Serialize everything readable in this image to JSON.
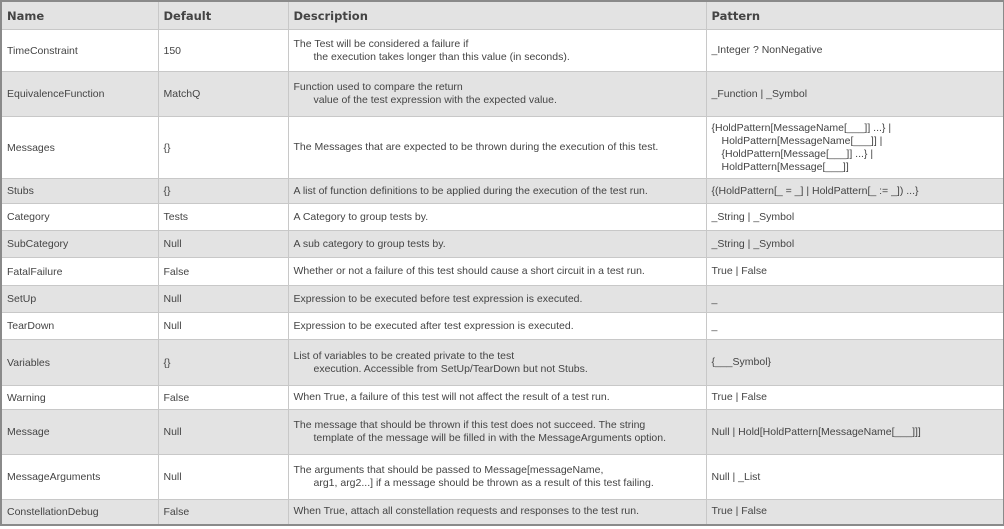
{
  "headers": [
    "Name",
    "Default",
    "Description",
    "Pattern"
  ],
  "rows": [
    {
      "name": "TimeConstraint",
      "default": "150",
      "description": [
        "The Test will be considered a failure if",
        "the execution takes longer than this value (in seconds)."
      ],
      "pattern": [
        "_Integer ? NonNegative"
      ]
    },
    {
      "name": "EquivalenceFunction",
      "default": "MatchQ",
      "description": [
        "Function used to compare the return",
        "value of the test expression with the expected value."
      ],
      "pattern": [
        "_Function | _Symbol"
      ]
    },
    {
      "name": "Messages",
      "default": "{}",
      "description": [
        "The Messages that are expected to be thrown during the execution of this test."
      ],
      "pattern": [
        "{HoldPattern[MessageName[___]] ...} |",
        "HoldPattern[MessageName[___]] |",
        "{HoldPattern[Message[___]] ...} | HoldPattern[Message[___]]"
      ]
    },
    {
      "name": "Stubs",
      "default": "{}",
      "description": [
        "A list of function definitions to be applied during the execution of the test run."
      ],
      "pattern": [
        "{(HoldPattern[_ = _] | HoldPattern[_ := _]) ...}"
      ]
    },
    {
      "name": "Category",
      "default": "Tests",
      "description": [
        "A Category to group tests by."
      ],
      "pattern": [
        "_String | _Symbol"
      ]
    },
    {
      "name": "SubCategory",
      "default": "Null",
      "description": [
        "A sub category to group tests by."
      ],
      "pattern": [
        "_String | _Symbol"
      ]
    },
    {
      "name": "FatalFailure",
      "default": "False",
      "description": [
        "Whether or not a failure of this test should cause a short circuit in a test run."
      ],
      "pattern": [
        "True | False"
      ]
    },
    {
      "name": "SetUp",
      "default": "Null",
      "description": [
        "Expression to be executed before test expression is executed."
      ],
      "pattern": [
        "_"
      ]
    },
    {
      "name": "TearDown",
      "default": "Null",
      "description": [
        "Expression to be executed after test expression is executed."
      ],
      "pattern": [
        "_"
      ]
    },
    {
      "name": "Variables",
      "default": "{}",
      "description": [
        "List of variables to be created private to the test",
        "execution. Accessible from SetUp/TearDown but not Stubs."
      ],
      "pattern": [
        "{___Symbol}"
      ]
    },
    {
      "name": "Warning",
      "default": "False",
      "description": [
        "When True, a failure of this test will not affect the result of a test run."
      ],
      "pattern": [
        "True | False"
      ]
    },
    {
      "name": "Message",
      "default": "Null",
      "description": [
        "The message that should be thrown if this test does not succeed. The string",
        "template of the message will be filled in with the MessageArguments option."
      ],
      "pattern": [
        "Null | Hold[HoldPattern[MessageName[___]]]"
      ]
    },
    {
      "name": "MessageArguments",
      "default": "Null",
      "description": [
        "The arguments that should be passed to Message[messageName,",
        "arg1, arg2...] if a message should be thrown as a result of this test failing."
      ],
      "pattern": [
        "Null | _List"
      ]
    },
    {
      "name": "ConstellationDebug",
      "default": "False",
      "description": [
        "When True, attach all constellation requests and responses to the test run."
      ],
      "pattern": [
        "True | False"
      ]
    }
  ]
}
